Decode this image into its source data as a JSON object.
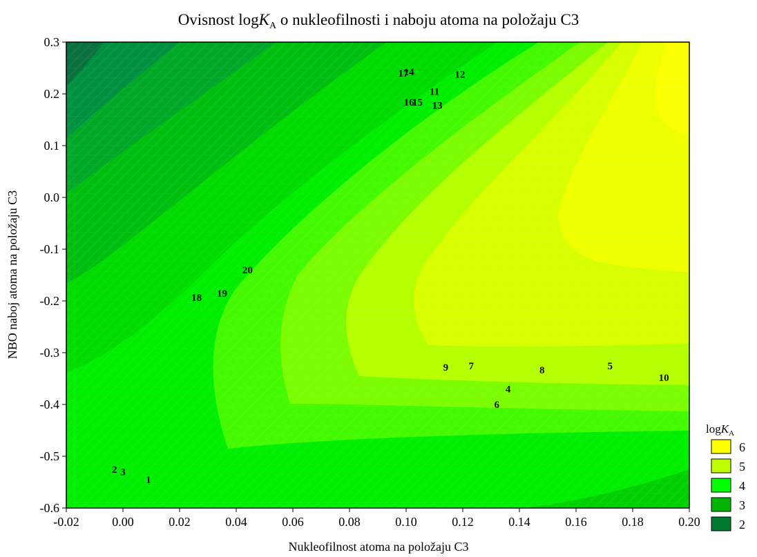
{
  "chart_data": {
    "type": "contour",
    "title": {
      "prefix": "Ovisnost log",
      "italic": "K",
      "sub": "A",
      "suffix": " o nukleofilnosti i naboju atoma na položaju C3"
    },
    "xlabel": "Nukleofilnost atoma na položaju C3",
    "ylabel": "NBO naboj atoma na položaju C3",
    "xlim": [
      -0.02,
      0.2
    ],
    "ylim": [
      -0.6,
      0.3
    ],
    "xticks": [
      "-0.02",
      "0.00",
      "0.02",
      "0.04",
      "0.06",
      "0.08",
      "0.10",
      "0.12",
      "0.14",
      "0.16",
      "0.18",
      "0.20"
    ],
    "yticks": [
      "0.3",
      "0.2",
      "0.1",
      "0.0",
      "-0.1",
      "-0.2",
      "-0.3",
      "-0.4",
      "-0.5",
      "-0.6"
    ],
    "legend": {
      "title": {
        "prefix": "log",
        "italic": "K",
        "sub": "A"
      },
      "placement": "right",
      "levels": [
        {
          "label": "6",
          "color": "#ffff00"
        },
        {
          "label": "5",
          "color": "#bfff00"
        },
        {
          "label": "4",
          "color": "#00ff00"
        },
        {
          "label": "3",
          "color": "#00b400"
        },
        {
          "label": "2",
          "color": "#007a30"
        }
      ]
    },
    "points": [
      {
        "label": "1",
        "x": 0.009,
        "y": -0.545
      },
      {
        "label": "2",
        "x": -0.003,
        "y": -0.525
      },
      {
        "label": "3",
        "x": 0.0,
        "y": -0.53
      },
      {
        "label": "4",
        "x": 0.136,
        "y": -0.37
      },
      {
        "label": "5",
        "x": 0.172,
        "y": -0.325
      },
      {
        "label": "6",
        "x": 0.132,
        "y": -0.4
      },
      {
        "label": "7",
        "x": 0.123,
        "y": -0.325
      },
      {
        "label": "8",
        "x": 0.148,
        "y": -0.333
      },
      {
        "label": "9",
        "x": 0.114,
        "y": -0.328
      },
      {
        "label": "10",
        "x": 0.191,
        "y": -0.348
      },
      {
        "label": "11",
        "x": 0.11,
        "y": 0.205
      },
      {
        "label": "12",
        "x": 0.119,
        "y": 0.238
      },
      {
        "label": "13",
        "x": 0.111,
        "y": 0.178
      },
      {
        "label": "14",
        "x": 0.101,
        "y": 0.243
      },
      {
        "label": "15",
        "x": 0.104,
        "y": 0.184
      },
      {
        "label": "16",
        "x": 0.101,
        "y": 0.184
      },
      {
        "label": "17",
        "x": 0.099,
        "y": 0.24
      },
      {
        "label": "18",
        "x": 0.026,
        "y": -0.193
      },
      {
        "label": "19",
        "x": 0.035,
        "y": -0.185
      },
      {
        "label": "20",
        "x": 0.044,
        "y": -0.14
      }
    ]
  }
}
